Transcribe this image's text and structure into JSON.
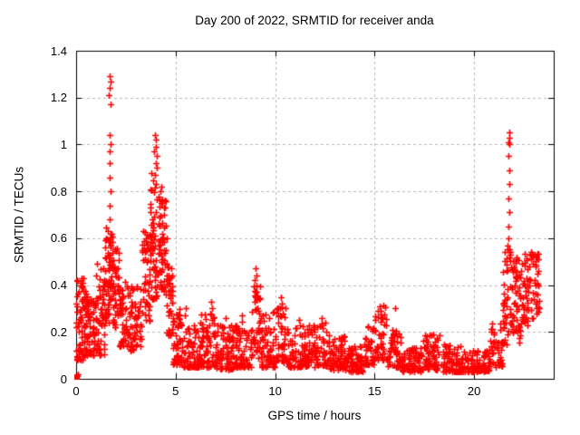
{
  "chart_data": {
    "type": "scatter",
    "title": "Day 200 of 2022, SRMTID for receiver anda",
    "xlabel": "GPS time / hours",
    "ylabel": "SRMTID / TECUs",
    "xlim": [
      0,
      24
    ],
    "ylim": [
      0,
      1.4
    ],
    "xticks": [
      0,
      5,
      10,
      15,
      20
    ],
    "xtick_labels": [
      "0",
      "5",
      "10",
      "15",
      "20"
    ],
    "yticks": [
      0,
      0.2,
      0.4,
      0.6,
      0.8,
      1,
      1.2,
      1.4
    ],
    "ytick_labels": [
      "0",
      "0.2",
      "0.4",
      "0.6",
      "0.8",
      "1",
      "1.2",
      "1.4"
    ],
    "grid": "dashed",
    "legend": "none",
    "marker": {
      "shape": "plus",
      "size": 7,
      "stroke_width": 1.6
    },
    "origin_marker": {
      "x": 0.06,
      "y": 0.008,
      "style": "filled-square",
      "size": 6
    },
    "seed": 20220200,
    "density_bands_format": "[x_start,x_end,count,y_min,y_max,bias_exponent]",
    "density_bands": [
      [
        0.02,
        0.5,
        75,
        0.08,
        0.43,
        1.4
      ],
      [
        0.5,
        1.0,
        60,
        0.1,
        0.36,
        1.5
      ],
      [
        1.0,
        1.45,
        55,
        0.1,
        0.5,
        1.4
      ],
      [
        1.45,
        1.65,
        28,
        0.22,
        0.66,
        1.2
      ],
      [
        1.6,
        1.85,
        30,
        0.33,
        0.62,
        1.1
      ],
      [
        1.85,
        2.15,
        40,
        0.22,
        0.56,
        1.2
      ],
      [
        2.15,
        2.65,
        48,
        0.14,
        0.42,
        1.4
      ],
      [
        2.65,
        3.3,
        58,
        0.12,
        0.4,
        1.4
      ],
      [
        3.3,
        3.7,
        48,
        0.24,
        0.64,
        1.2
      ],
      [
        3.7,
        4.15,
        62,
        0.34,
        0.88,
        1.3
      ],
      [
        4.15,
        4.55,
        58,
        0.36,
        0.78,
        1.3
      ],
      [
        4.55,
        4.85,
        38,
        0.18,
        0.48,
        1.3
      ],
      [
        4.85,
        5.3,
        48,
        0.06,
        0.3,
        1.5
      ],
      [
        5.3,
        6.2,
        75,
        0.05,
        0.24,
        1.7
      ],
      [
        6.2,
        7.0,
        70,
        0.05,
        0.28,
        1.7
      ],
      [
        7.0,
        8.0,
        80,
        0.04,
        0.23,
        1.7
      ],
      [
        8.0,
        8.8,
        65,
        0.05,
        0.25,
        1.7
      ],
      [
        8.8,
        9.3,
        45,
        0.09,
        0.4,
        1.4
      ],
      [
        9.3,
        10.0,
        60,
        0.05,
        0.29,
        1.6
      ],
      [
        10.0,
        10.6,
        48,
        0.07,
        0.31,
        1.5
      ],
      [
        10.6,
        11.6,
        75,
        0.05,
        0.23,
        1.7
      ],
      [
        11.6,
        12.6,
        75,
        0.05,
        0.24,
        1.7
      ],
      [
        12.6,
        13.6,
        75,
        0.04,
        0.19,
        1.7
      ],
      [
        13.6,
        14.5,
        65,
        0.03,
        0.15,
        1.6
      ],
      [
        14.5,
        15.0,
        38,
        0.06,
        0.23,
        1.5
      ],
      [
        15.0,
        15.6,
        42,
        0.08,
        0.33,
        1.4
      ],
      [
        15.6,
        16.3,
        52,
        0.05,
        0.21,
        1.6
      ],
      [
        16.3,
        17.4,
        75,
        0.03,
        0.14,
        1.6
      ],
      [
        17.4,
        18.3,
        62,
        0.04,
        0.19,
        1.6
      ],
      [
        18.3,
        19.5,
        78,
        0.03,
        0.15,
        1.7
      ],
      [
        19.5,
        20.8,
        85,
        0.03,
        0.13,
        1.7
      ],
      [
        20.8,
        21.4,
        42,
        0.05,
        0.24,
        1.4
      ],
      [
        21.4,
        21.9,
        48,
        0.14,
        0.58,
        1.2
      ],
      [
        21.9,
        22.4,
        55,
        0.15,
        0.52,
        1.1
      ],
      [
        22.4,
        22.9,
        48,
        0.2,
        0.54,
        1.1
      ],
      [
        22.9,
        23.3,
        32,
        0.25,
        0.56,
        1.1
      ]
    ],
    "outlier_points": [
      [
        1.68,
        1.29
      ],
      [
        1.73,
        1.27
      ],
      [
        1.7,
        1.24
      ],
      [
        1.66,
        1.21
      ],
      [
        1.71,
        1.17
      ],
      [
        1.69,
        1.04
      ],
      [
        1.74,
        1.0
      ],
      [
        1.67,
        0.97
      ],
      [
        1.7,
        0.92
      ],
      [
        1.68,
        0.86
      ],
      [
        1.72,
        0.8
      ],
      [
        1.69,
        0.74
      ],
      [
        1.67,
        0.68
      ],
      [
        1.71,
        0.62
      ],
      [
        1.74,
        0.56
      ],
      [
        1.64,
        0.5
      ],
      [
        1.52,
        0.6
      ],
      [
        1.48,
        0.56
      ],
      [
        3.97,
        1.04
      ],
      [
        4.02,
        1.02
      ],
      [
        4.0,
        0.99
      ],
      [
        3.93,
        0.97
      ],
      [
        4.05,
        0.95
      ],
      [
        3.99,
        0.92
      ],
      [
        4.04,
        0.9
      ],
      [
        3.95,
        0.87
      ],
      [
        4.28,
        0.82
      ],
      [
        4.22,
        0.8
      ],
      [
        9.0,
        0.47
      ],
      [
        9.04,
        0.44
      ],
      [
        8.98,
        0.42
      ],
      [
        9.06,
        0.4
      ],
      [
        9.01,
        0.37
      ],
      [
        9.03,
        0.35
      ],
      [
        8.95,
        0.33
      ],
      [
        10.28,
        0.35
      ],
      [
        10.33,
        0.32
      ],
      [
        10.24,
        0.3
      ],
      [
        6.78,
        0.33
      ],
      [
        6.83,
        0.3
      ],
      [
        6.74,
        0.28
      ],
      [
        5.52,
        0.3
      ],
      [
        5.47,
        0.27
      ],
      [
        7.52,
        0.26
      ],
      [
        8.32,
        0.27
      ],
      [
        11.22,
        0.25
      ],
      [
        12.35,
        0.26
      ],
      [
        15.25,
        0.31
      ],
      [
        15.32,
        0.29
      ],
      [
        16.02,
        0.3
      ],
      [
        17.95,
        0.19
      ],
      [
        21.75,
        1.05
      ],
      [
        21.78,
        1.03
      ],
      [
        21.73,
        1.01
      ],
      [
        21.77,
        1.0
      ],
      [
        21.74,
        0.95
      ],
      [
        21.76,
        0.89
      ],
      [
        21.75,
        0.83
      ],
      [
        21.73,
        0.77
      ],
      [
        21.77,
        0.71
      ],
      [
        21.74,
        0.65
      ],
      [
        21.72,
        0.6
      ],
      [
        21.7,
        0.57
      ],
      [
        23.12,
        0.52
      ],
      [
        23.18,
        0.45
      ],
      [
        23.24,
        0.4
      ],
      [
        0.0,
        0.22
      ],
      [
        0.0,
        0.12
      ],
      [
        0.01,
        0.32
      ],
      [
        0.05,
        0.01
      ],
      [
        0.08,
        0.02
      ]
    ]
  },
  "colors": {
    "background": "#ffffff",
    "border": "#000000",
    "grid": "#b8b8b8",
    "text": "#000000",
    "marker": "#ff0000"
  }
}
